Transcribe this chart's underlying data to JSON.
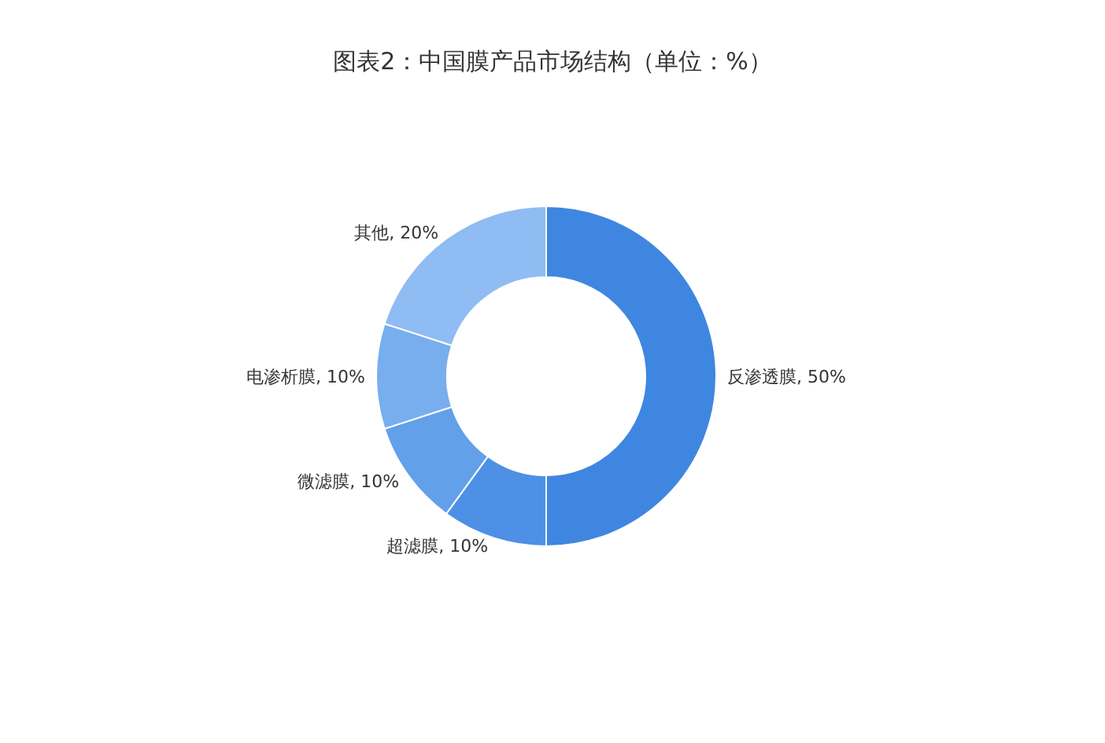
{
  "chart_data": {
    "type": "donut",
    "title": "图表2：中国膜产品市场结构（单位：%）",
    "categories": [
      "反渗透膜",
      "超滤膜",
      "微滤膜",
      "电渗析膜",
      "其他"
    ],
    "values": [
      50,
      10,
      10,
      10,
      20
    ],
    "colors": [
      "#3f86e0",
      "#4d90e6",
      "#62a0ea",
      "#78aeee",
      "#8fbcf2"
    ],
    "value_labels": [
      ", 50%",
      ", 10%",
      ", 10%",
      ", 10%",
      ", 20%"
    ]
  }
}
